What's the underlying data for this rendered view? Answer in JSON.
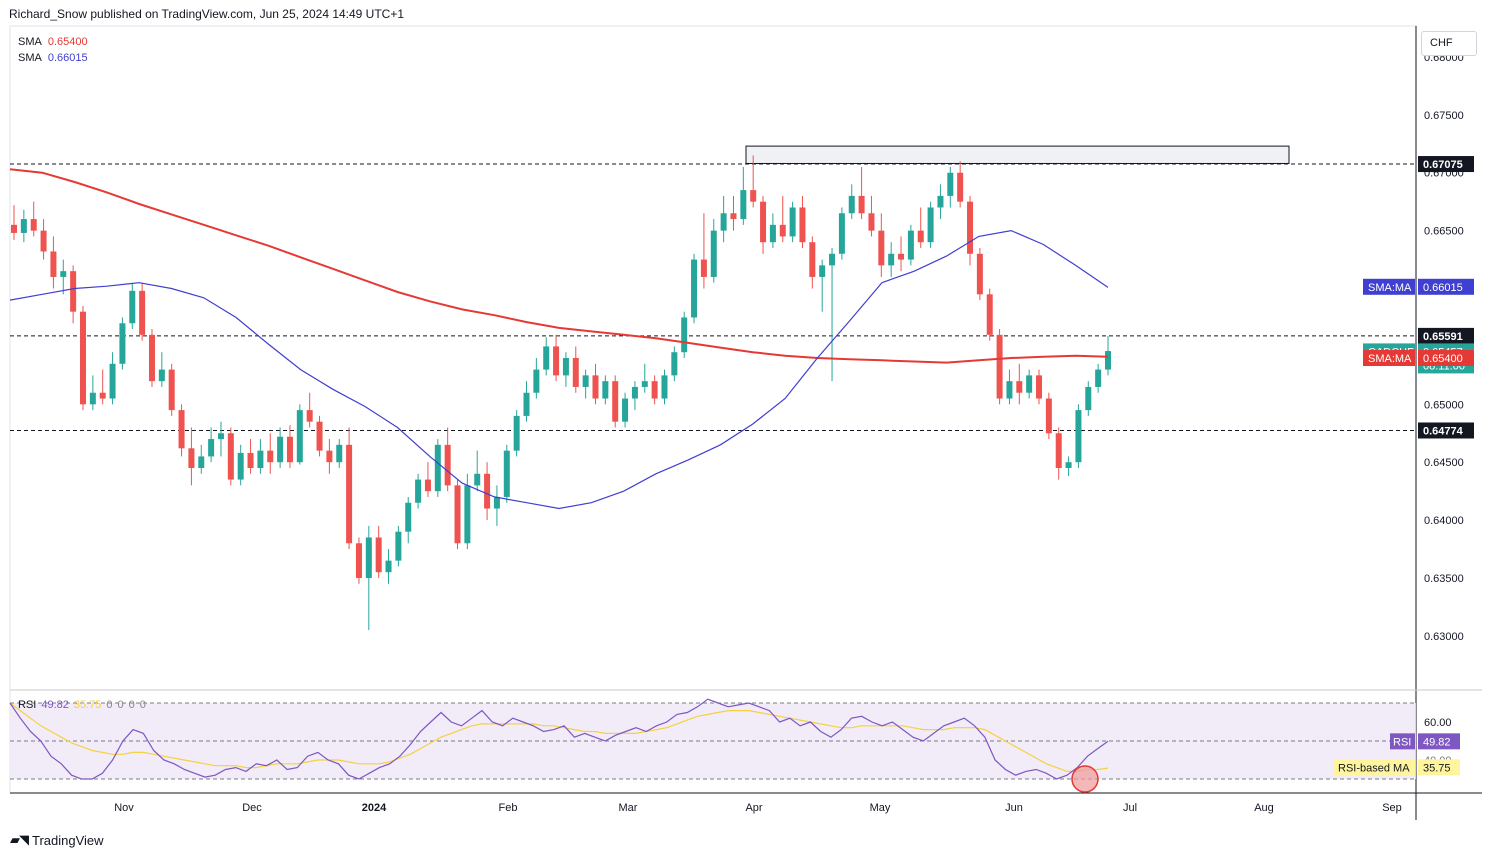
{
  "header": {
    "publisher_line": "Richard_Snow published on TradingView.com, Jun 25, 2024 14:49 UTC+1"
  },
  "currency_button": "CHF",
  "footer": {
    "brand": "TradingView"
  },
  "legend": {
    "sma1_label": "SMA",
    "sma1_value": "0.65400",
    "sma1_color": "#e53935",
    "sma2_label": "SMA",
    "sma2_value": "0.66015",
    "sma2_color": "#3f3fd1"
  },
  "rsi_legend": {
    "label": "RSI",
    "rsi_value": "49.82",
    "ma_value": "35.75",
    "extra": [
      "0",
      "0",
      "0",
      "0"
    ]
  },
  "colors": {
    "up": "#26a69a",
    "down": "#ef5350",
    "sma200": "#e53935",
    "sma50": "#3f3fd1",
    "rsi": "#7e57c2",
    "rsi_ma": "#f5d142",
    "rsi_band": "#ede7f6"
  },
  "chart_data": [
    {
      "type": "candlestick",
      "symbol": "CADCHF",
      "y_axis_ticks": [
        "0.68000",
        "0.67500",
        "0.67000",
        "0.66500",
        "0.66000",
        "0.65500",
        "0.65000",
        "0.64500",
        "0.64000",
        "0.63500",
        "0.63000"
      ],
      "ylim": [
        0.6255,
        0.6825
      ],
      "x_axis_ticks": [
        "Nov",
        "Dec",
        "2024",
        "Feb",
        "Mar",
        "Apr",
        "May",
        "Jun",
        "Jul",
        "Aug",
        "Sep"
      ],
      "horizontal_levels": [
        0.67075,
        0.65591,
        0.64774
      ],
      "resistance_zone": {
        "low": 0.6708,
        "high": 0.6723,
        "from": "Apr 01 2024",
        "to": "Jul 15 2024"
      },
      "price_labels": [
        {
          "text": "0.67075",
          "value": 0.67075,
          "style": "black"
        },
        {
          "text": "SMA:MA",
          "value_text": "0.66015",
          "value": 0.66015,
          "style": "blue"
        },
        {
          "text": "0.65591",
          "value": 0.65591,
          "style": "black"
        },
        {
          "text": "CADCHF",
          "value_text": "0.65457",
          "countdown": "08:11:00",
          "value": 0.65457,
          "style": "teal"
        },
        {
          "text": "SMA:MA",
          "value_text": "0.65400",
          "value": 0.654,
          "style": "red"
        },
        {
          "text": "0.64774",
          "value": 0.64774,
          "style": "black"
        }
      ],
      "candles_ohlc_sequence": [
        [
          0.6655,
          0.6672,
          0.6642,
          0.6648
        ],
        [
          0.6648,
          0.6668,
          0.664,
          0.666
        ],
        [
          0.666,
          0.6675,
          0.6645,
          0.665
        ],
        [
          0.665,
          0.666,
          0.6625,
          0.6632
        ],
        [
          0.6632,
          0.6645,
          0.66,
          0.661
        ],
        [
          0.661,
          0.6625,
          0.6595,
          0.6615
        ],
        [
          0.6615,
          0.662,
          0.657,
          0.658
        ],
        [
          0.658,
          0.6585,
          0.6495,
          0.65
        ],
        [
          0.65,
          0.6525,
          0.6495,
          0.651
        ],
        [
          0.651,
          0.653,
          0.65,
          0.6505
        ],
        [
          0.6505,
          0.6545,
          0.65,
          0.6535
        ],
        [
          0.6535,
          0.6575,
          0.653,
          0.657
        ],
        [
          0.657,
          0.6605,
          0.6565,
          0.6598
        ],
        [
          0.6598,
          0.6605,
          0.6555,
          0.656
        ],
        [
          0.656,
          0.6565,
          0.6515,
          0.652
        ],
        [
          0.652,
          0.6545,
          0.6515,
          0.653
        ],
        [
          0.653,
          0.6535,
          0.649,
          0.6495
        ],
        [
          0.6495,
          0.65,
          0.6455,
          0.6462
        ],
        [
          0.6462,
          0.648,
          0.643,
          0.6445
        ],
        [
          0.6445,
          0.6465,
          0.644,
          0.6455
        ],
        [
          0.6455,
          0.648,
          0.645,
          0.647
        ],
        [
          0.647,
          0.6485,
          0.6455,
          0.6475
        ],
        [
          0.6475,
          0.648,
          0.643,
          0.6435
        ],
        [
          0.6435,
          0.6465,
          0.643,
          0.6458
        ],
        [
          0.6458,
          0.647,
          0.644,
          0.6445
        ],
        [
          0.6445,
          0.647,
          0.644,
          0.646
        ],
        [
          0.646,
          0.6475,
          0.644,
          0.645
        ],
        [
          0.645,
          0.648,
          0.6445,
          0.6472
        ],
        [
          0.6472,
          0.6482,
          0.6445,
          0.645
        ],
        [
          0.645,
          0.65,
          0.6448,
          0.6495
        ],
        [
          0.6495,
          0.651,
          0.648,
          0.6485
        ],
        [
          0.6485,
          0.649,
          0.6455,
          0.646
        ],
        [
          0.646,
          0.647,
          0.644,
          0.645
        ],
        [
          0.645,
          0.647,
          0.6445,
          0.6465
        ],
        [
          0.6465,
          0.648,
          0.6375,
          0.638
        ],
        [
          0.638,
          0.6385,
          0.6345,
          0.635
        ],
        [
          0.635,
          0.6395,
          0.6305,
          0.6385
        ],
        [
          0.6385,
          0.6395,
          0.635,
          0.6355
        ],
        [
          0.6355,
          0.6375,
          0.6345,
          0.6365
        ],
        [
          0.6365,
          0.6395,
          0.636,
          0.639
        ],
        [
          0.639,
          0.642,
          0.638,
          0.6415
        ],
        [
          0.6415,
          0.644,
          0.641,
          0.6435
        ],
        [
          0.6435,
          0.645,
          0.642,
          0.6425
        ],
        [
          0.6425,
          0.647,
          0.642,
          0.6465
        ],
        [
          0.6465,
          0.648,
          0.6425,
          0.643
        ],
        [
          0.643,
          0.6435,
          0.6375,
          0.638
        ],
        [
          0.638,
          0.644,
          0.6375,
          0.643
        ],
        [
          0.643,
          0.646,
          0.6425,
          0.644
        ],
        [
          0.644,
          0.645,
          0.64,
          0.641
        ],
        [
          0.641,
          0.643,
          0.6395,
          0.642
        ],
        [
          0.642,
          0.6465,
          0.6415,
          0.646
        ],
        [
          0.646,
          0.6495,
          0.6455,
          0.649
        ],
        [
          0.649,
          0.652,
          0.6485,
          0.651
        ],
        [
          0.651,
          0.654,
          0.6505,
          0.653
        ],
        [
          0.653,
          0.6558,
          0.6525,
          0.655
        ],
        [
          0.655,
          0.656,
          0.652,
          0.6525
        ],
        [
          0.6525,
          0.6545,
          0.6515,
          0.654
        ],
        [
          0.654,
          0.655,
          0.651,
          0.6515
        ],
        [
          0.6515,
          0.653,
          0.6505,
          0.6525
        ],
        [
          0.6525,
          0.6535,
          0.65,
          0.6505
        ],
        [
          0.6505,
          0.6525,
          0.65,
          0.652
        ],
        [
          0.652,
          0.6525,
          0.648,
          0.6485
        ],
        [
          0.6485,
          0.651,
          0.648,
          0.6505
        ],
        [
          0.6505,
          0.652,
          0.6495,
          0.6515
        ],
        [
          0.6515,
          0.6535,
          0.651,
          0.652
        ],
        [
          0.652,
          0.6525,
          0.65,
          0.6505
        ],
        [
          0.6505,
          0.653,
          0.65,
          0.6525
        ],
        [
          0.6525,
          0.655,
          0.652,
          0.6545
        ],
        [
          0.6545,
          0.658,
          0.654,
          0.6575
        ],
        [
          0.6575,
          0.663,
          0.657,
          0.6625
        ],
        [
          0.6625,
          0.6665,
          0.66,
          0.661
        ],
        [
          0.661,
          0.666,
          0.6605,
          0.665
        ],
        [
          0.665,
          0.668,
          0.664,
          0.6665
        ],
        [
          0.6665,
          0.668,
          0.665,
          0.666
        ],
        [
          0.666,
          0.6705,
          0.6655,
          0.6685
        ],
        [
          0.6685,
          0.6715,
          0.667,
          0.6675
        ],
        [
          0.6675,
          0.668,
          0.663,
          0.664
        ],
        [
          0.664,
          0.6665,
          0.6635,
          0.6655
        ],
        [
          0.6655,
          0.668,
          0.664,
          0.6645
        ],
        [
          0.6645,
          0.6675,
          0.664,
          0.667
        ],
        [
          0.667,
          0.668,
          0.6635,
          0.664
        ],
        [
          0.664,
          0.6645,
          0.66,
          0.661
        ],
        [
          0.661,
          0.6625,
          0.658,
          0.662
        ],
        [
          0.662,
          0.6635,
          0.652,
          0.663
        ],
        [
          0.663,
          0.667,
          0.6625,
          0.6665
        ],
        [
          0.6665,
          0.669,
          0.666,
          0.668
        ],
        [
          0.668,
          0.6705,
          0.666,
          0.6665
        ],
        [
          0.6665,
          0.668,
          0.6645,
          0.665
        ],
        [
          0.665,
          0.6665,
          0.661,
          0.662
        ],
        [
          0.662,
          0.664,
          0.661,
          0.663
        ],
        [
          0.663,
          0.6645,
          0.6615,
          0.6625
        ],
        [
          0.6625,
          0.6655,
          0.662,
          0.665
        ],
        [
          0.665,
          0.667,
          0.6635,
          0.664
        ],
        [
          0.664,
          0.6675,
          0.6635,
          0.667
        ],
        [
          0.667,
          0.669,
          0.666,
          0.668
        ],
        [
          0.668,
          0.6705,
          0.667,
          0.67
        ],
        [
          0.67,
          0.671,
          0.667,
          0.6675
        ],
        [
          0.6675,
          0.668,
          0.662,
          0.663
        ],
        [
          0.663,
          0.6635,
          0.659,
          0.6595
        ],
        [
          0.6595,
          0.66,
          0.6555,
          0.656
        ],
        [
          0.656,
          0.6565,
          0.65,
          0.6505
        ],
        [
          0.6505,
          0.653,
          0.65,
          0.652
        ],
        [
          0.652,
          0.6535,
          0.65,
          0.651
        ],
        [
          0.651,
          0.653,
          0.6505,
          0.6525
        ],
        [
          0.6525,
          0.653,
          0.65,
          0.6505
        ],
        [
          0.6505,
          0.651,
          0.647,
          0.6475
        ],
        [
          0.6475,
          0.648,
          0.6435,
          0.6445
        ],
        [
          0.6445,
          0.6455,
          0.6438,
          0.645
        ],
        [
          0.645,
          0.65,
          0.6445,
          0.6495
        ],
        [
          0.6495,
          0.652,
          0.649,
          0.6515
        ],
        [
          0.6515,
          0.6535,
          0.651,
          0.653
        ],
        [
          0.653,
          0.6559,
          0.6525,
          0.6546
        ]
      ],
      "sma200_path_values": [
        0.6703,
        0.67,
        0.6692,
        0.6683,
        0.6673,
        0.6664,
        0.6655,
        0.6646,
        0.6637,
        0.6627,
        0.6617,
        0.6607,
        0.6597,
        0.6589,
        0.6582,
        0.6577,
        0.6571,
        0.6566,
        0.6563,
        0.656,
        0.6557,
        0.6553,
        0.6549,
        0.6545,
        0.6542,
        0.654,
        0.6539,
        0.6538,
        0.6537,
        0.6536,
        0.6538,
        0.654,
        0.6541,
        0.6542,
        0.6541
      ],
      "sma50_path_values": [
        0.659,
        0.6595,
        0.66,
        0.6602,
        0.6605,
        0.66,
        0.6592,
        0.6575,
        0.6552,
        0.653,
        0.6513,
        0.6498,
        0.648,
        0.6455,
        0.6432,
        0.642,
        0.6415,
        0.641,
        0.6415,
        0.6425,
        0.644,
        0.6452,
        0.6465,
        0.6483,
        0.6505,
        0.654,
        0.6572,
        0.6605,
        0.6615,
        0.6628,
        0.6645,
        0.665,
        0.6638,
        0.662,
        0.6601
      ]
    },
    {
      "type": "line",
      "name": "RSI",
      "y_axis_ticks": [
        "60.00",
        "40.00"
      ],
      "guide_levels": [
        70,
        50,
        30
      ],
      "rsi_values": [
        70,
        62,
        55,
        50,
        42,
        38,
        32,
        30,
        30,
        33,
        40,
        50,
        56,
        54,
        45,
        40,
        38,
        35,
        33,
        31,
        32,
        35,
        36,
        34,
        38,
        37,
        40,
        35,
        36,
        42,
        44,
        40,
        38,
        32,
        30,
        33,
        36,
        38,
        42,
        48,
        55,
        60,
        65,
        60,
        58,
        62,
        66,
        60,
        58,
        62,
        60,
        58,
        55,
        56,
        58,
        52,
        54,
        52,
        50,
        53,
        55,
        57,
        55,
        58,
        60,
        64,
        65,
        68,
        72,
        70,
        68,
        69,
        70,
        68,
        66,
        60,
        62,
        58,
        60,
        55,
        52,
        56,
        62,
        63,
        60,
        58,
        60,
        56,
        52,
        50,
        54,
        58,
        60,
        62,
        58,
        52,
        40,
        35,
        32,
        34,
        35,
        33,
        30,
        32,
        36,
        42,
        46,
        49.82
      ],
      "rsi_ma_values": [
        70,
        66,
        62,
        58,
        55,
        52,
        49,
        47,
        45,
        44,
        43,
        43,
        44,
        44,
        43,
        42,
        41,
        40,
        39,
        38,
        37,
        37,
        37,
        36,
        36,
        37,
        38,
        38,
        38,
        39,
        40,
        40,
        40,
        39,
        38,
        38,
        38,
        39,
        41,
        43,
        46,
        49,
        52,
        54,
        56,
        58,
        59,
        59,
        59,
        59,
        59,
        59,
        58,
        58,
        57,
        56,
        55,
        55,
        54,
        54,
        54,
        54,
        55,
        56,
        57,
        59,
        61,
        63,
        64,
        65,
        66,
        66,
        66,
        65,
        64,
        63,
        62,
        61,
        60,
        59,
        58,
        57,
        57,
        58,
        58,
        58,
        58,
        58,
        57,
        56,
        56,
        56,
        57,
        57,
        57,
        56,
        53,
        50,
        47,
        44,
        41,
        38,
        36,
        34,
        34,
        35,
        35,
        35.75
      ],
      "price_labels": [
        {
          "text": "RSI",
          "value_text": "49.82",
          "style": "purple"
        },
        {
          "text": "RSI-based MA",
          "value_text": "35.75",
          "style": "yellow"
        }
      ]
    }
  ]
}
